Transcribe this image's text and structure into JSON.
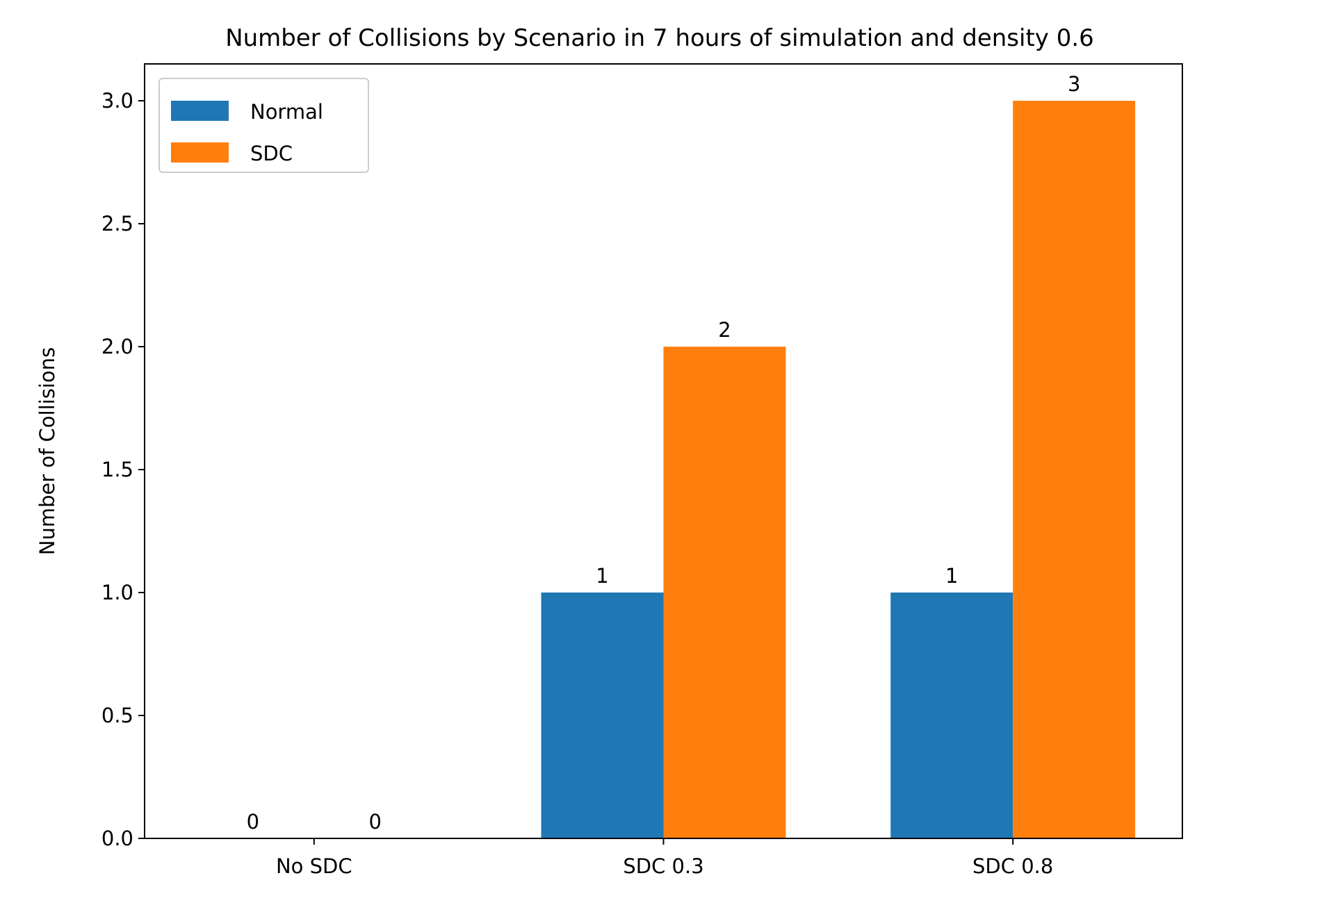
{
  "chart_data": {
    "type": "bar",
    "title": "Number of Collisions by Scenario in 7 hours of simulation and density 0.6",
    "xlabel": "",
    "ylabel": "Number of Collisions",
    "categories": [
      "No SDC",
      "SDC 0.3",
      "SDC 0.8"
    ],
    "series": [
      {
        "name": "Normal",
        "values": [
          0,
          1,
          1
        ],
        "color": "#1f77b4"
      },
      {
        "name": "SDC",
        "values": [
          0,
          2,
          3
        ],
        "color": "#ff7f0e"
      }
    ],
    "data_labels": [
      [
        "0",
        "1",
        "1"
      ],
      [
        "0",
        "2",
        "3"
      ]
    ],
    "ylim": [
      0,
      3.15
    ],
    "yticks": [
      "0.0",
      "0.5",
      "1.0",
      "1.5",
      "2.0",
      "2.5",
      "3.0"
    ],
    "legend_position": "upper left",
    "grid": false
  }
}
